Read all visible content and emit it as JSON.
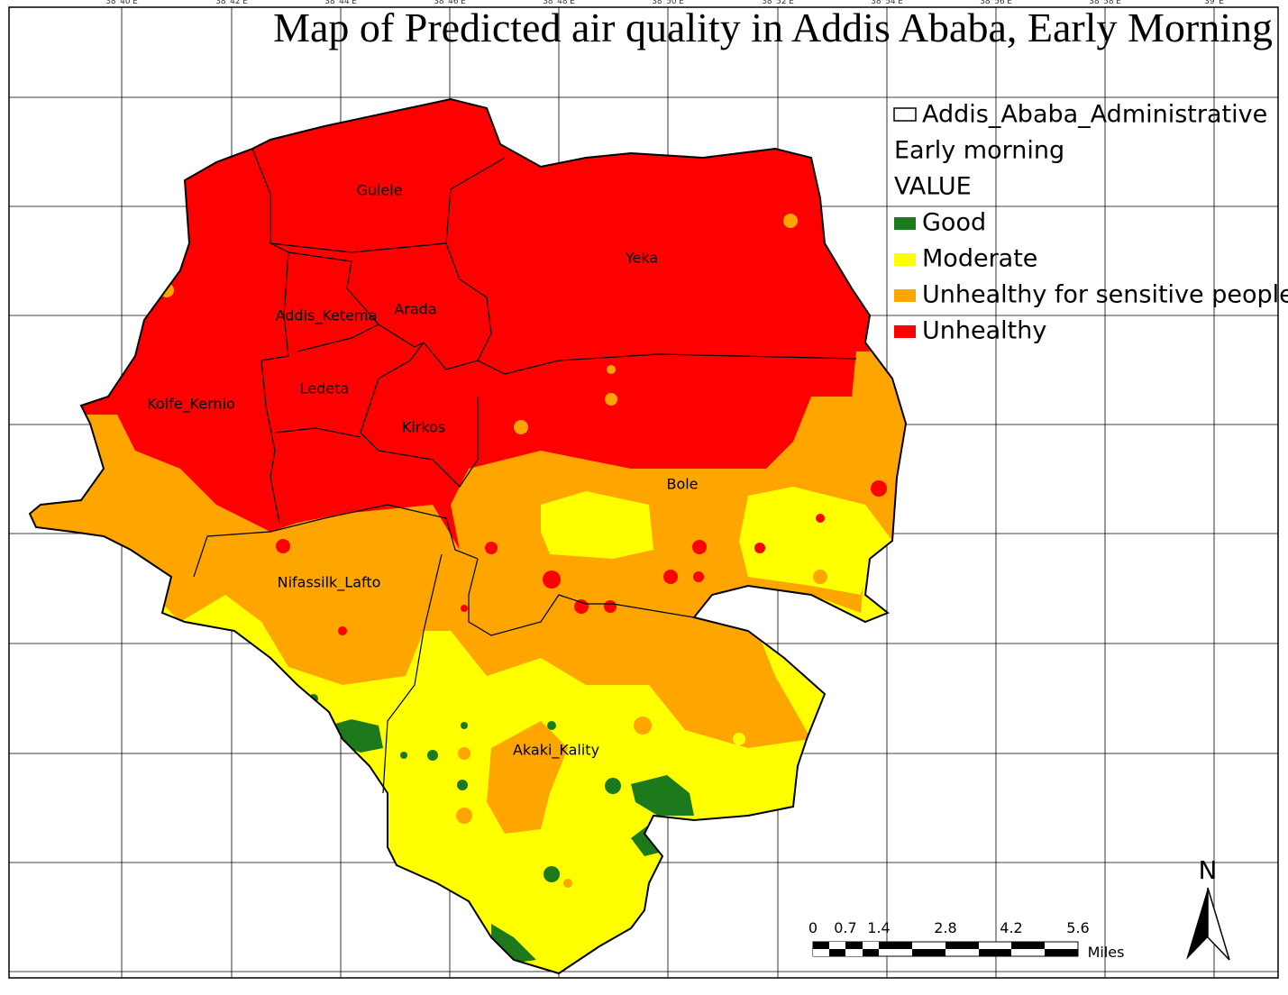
{
  "title": "Map of Predicted air quality in Addis Ababa, Early Morning",
  "graticule": [
    "38°40'E",
    "38°42'E",
    "38°44'E",
    "38°46'E",
    "38°48'E",
    "38°50'E",
    "38°52'E",
    "38°54'E",
    "38°56'E",
    "38°58'E",
    "39°E"
  ],
  "legend": {
    "boundary": "Addis_Ababa_Administrative",
    "layer": "Early morning",
    "field": "VALUE",
    "classes": [
      {
        "label": "Good",
        "color": "#1c7a1c"
      },
      {
        "label": "Moderate",
        "color": "#ffff00"
      },
      {
        "label": "Unhealthy for sensitive peoples",
        "color": "#ffa500"
      },
      {
        "label": "Unhealthy",
        "color": "#ff0000"
      }
    ]
  },
  "districts": [
    "Gulele",
    "Yeka",
    "Addis_Ketema",
    "Arada",
    "Ledeta",
    "Kolfe_Kernio",
    "Kirkos",
    "Bole",
    "Nifassilk_Lafto",
    "Akaki_Kality"
  ],
  "scale_bar": {
    "labels": [
      "0",
      "0.7",
      "1.4",
      "2.8",
      "4.2",
      "5.6"
    ],
    "unit": "Miles"
  },
  "north": "N"
}
